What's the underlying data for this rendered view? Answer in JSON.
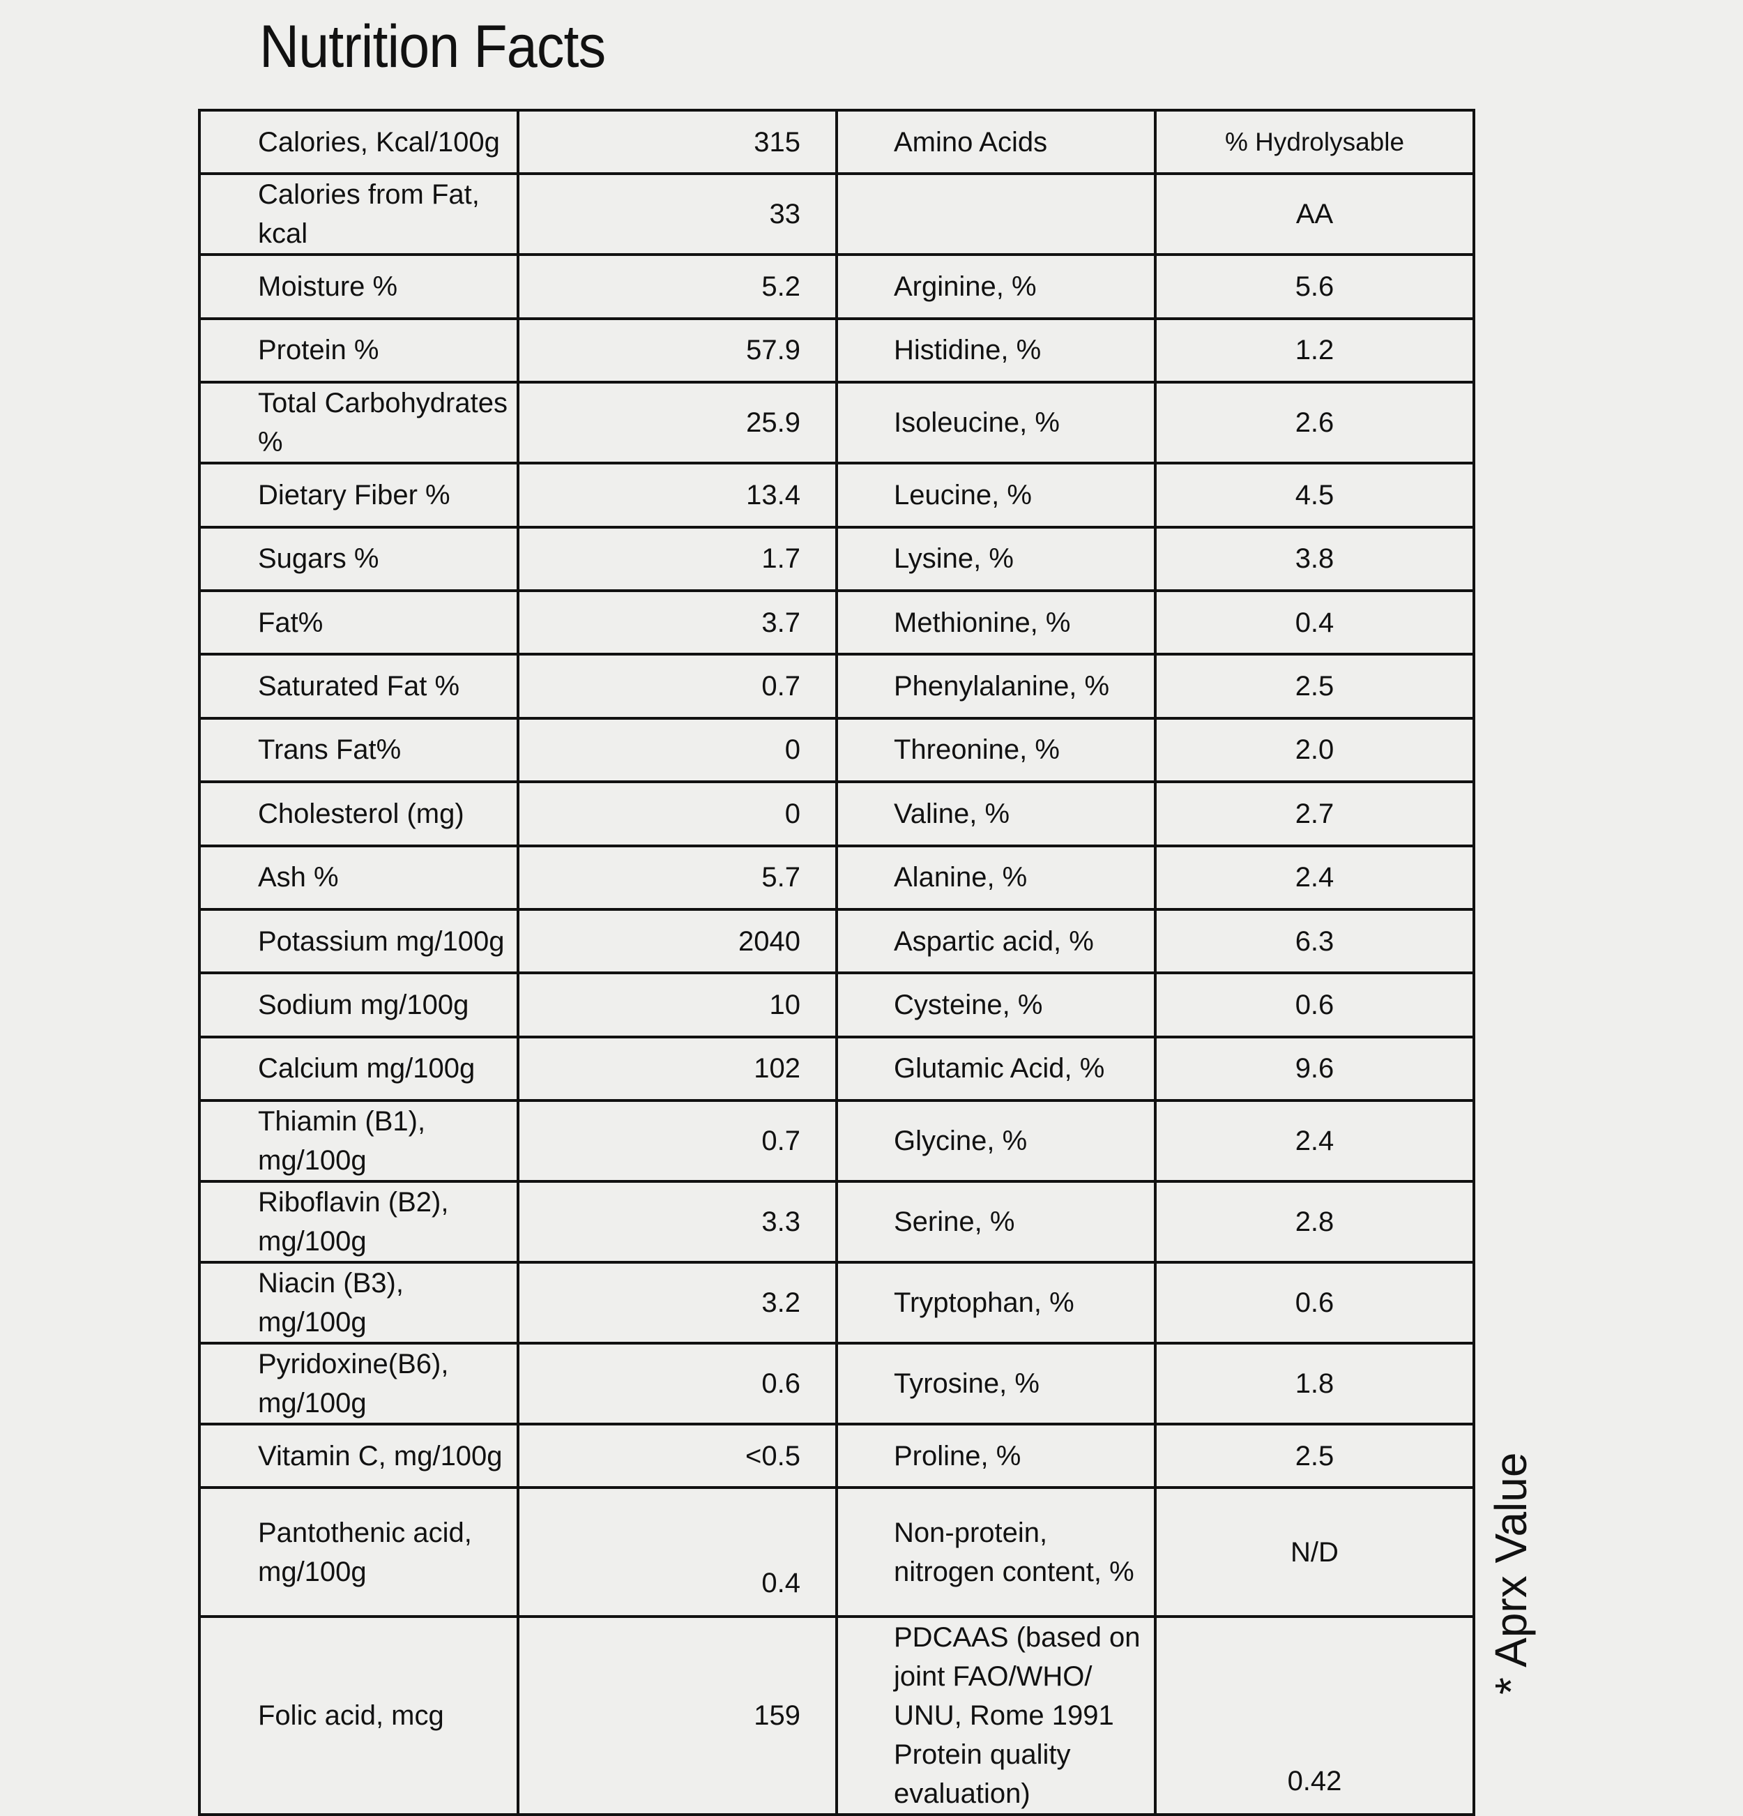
{
  "title": "Nutrition Facts",
  "rows": [
    {
      "label": "Calories, Kcal/100g",
      "value": "315",
      "amino": "Amino Acids",
      "amino_value": "% Hydrolysable"
    },
    {
      "label": "Calories from Fat, kcal",
      "value": "33",
      "amino": "",
      "amino_value": "AA"
    },
    {
      "label": "Moisture %",
      "value": "5.2",
      "amino": "Arginine, %",
      "amino_value": "5.6"
    },
    {
      "label": "Protein %",
      "value": "57.9",
      "amino": "Histidine, %",
      "amino_value": "1.2"
    },
    {
      "label": "Total Carbohydrates %",
      "value": "25.9",
      "amino": "Isoleucine, %",
      "amino_value": "2.6"
    },
    {
      "label": "Dietary Fiber %",
      "value": "13.4",
      "amino": "Leucine, %",
      "amino_value": "4.5"
    },
    {
      "label": "Sugars %",
      "value": "1.7",
      "amino": "Lysine, %",
      "amino_value": "3.8"
    },
    {
      "label": "Fat%",
      "value": "3.7",
      "amino": "Methionine, %",
      "amino_value": "0.4"
    },
    {
      "label": "Saturated Fat %",
      "value": "0.7",
      "amino": "Phenylalanine, %",
      "amino_value": "2.5"
    },
    {
      "label": "Trans Fat%",
      "value": "0",
      "amino": "Threonine, %",
      "amino_value": "2.0"
    },
    {
      "label": "Cholesterol (mg)",
      "value": "0",
      "amino": "Valine, %",
      "amino_value": "2.7"
    },
    {
      "label": "Ash %",
      "value": "5.7",
      "amino": "Alanine, %",
      "amino_value": "2.4"
    },
    {
      "label": "Potassium mg/100g",
      "value": "2040",
      "amino": "Aspartic acid, %",
      "amino_value": "6.3"
    },
    {
      "label": "Sodium mg/100g",
      "value": "10",
      "amino": "Cysteine, %",
      "amino_value": "0.6"
    },
    {
      "label": "Calcium mg/100g",
      "value": "102",
      "amino": "Glutamic Acid, %",
      "amino_value": "9.6"
    },
    {
      "label": "Thiamin (B1), mg/100g",
      "value": "0.7",
      "amino": "Glycine, %",
      "amino_value": "2.4"
    },
    {
      "label": "Riboflavin (B2), mg/100g",
      "value": "3.3",
      "amino": "Serine, %",
      "amino_value": "2.8"
    },
    {
      "label": "Niacin (B3), mg/100g",
      "value": "3.2",
      "amino": "Tryptophan, %",
      "amino_value": "0.6"
    },
    {
      "label": "Pyridoxine(B6), mg/100g",
      "value": "0.6",
      "amino": "Tyrosine, %",
      "amino_value": "1.8"
    },
    {
      "label": "Vitamin C, mg/100g",
      "value": "<0.5",
      "amino": "Proline, %",
      "amino_value": "2.5"
    },
    {
      "label": "Pantothenic acid, mg/100g",
      "value": "0.4",
      "amino": "Non-protein, nitrogen content, %",
      "amino_value": "N/D"
    },
    {
      "label": "Folic acid, mcg",
      "value": "159",
      "amino": "PDCAAS (based on joint FAO/WHO/ UNU, Rome 1991 Protein quality evaluation)",
      "amino_value": "0.42"
    }
  ],
  "footnote": "* Aprx Value"
}
